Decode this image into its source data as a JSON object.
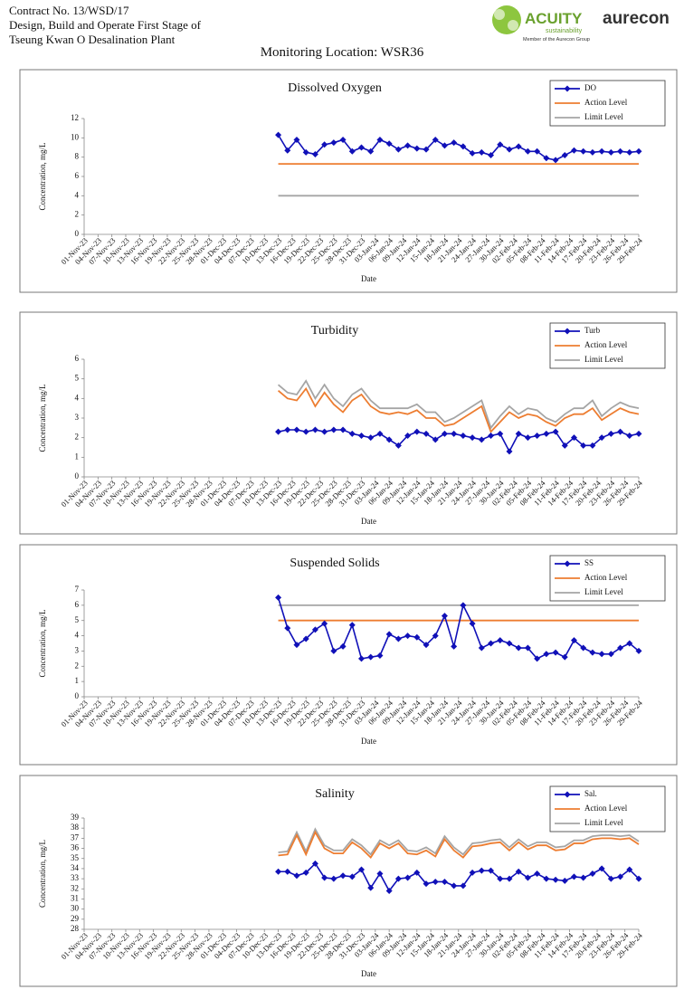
{
  "header": {
    "contract": "Contract No. 13/WSD/17",
    "line2": "Design, Build and Operate First Stage of",
    "line3": "Tseung Kwan O Desalination Plant",
    "logo_acuity": "ACUITY",
    "logo_sub": "sustainability",
    "logo_member": "Member of the Aurecon Group",
    "logo_aurecon": "aurecon"
  },
  "page_title": "Monitoring Location: WSR36",
  "chart_data": [
    {
      "type": "line",
      "title": "Dissolved Oxygen",
      "y_label": "Concentration, mg/L",
      "x_label": "Date",
      "legend": "upper right",
      "ylim": [
        0,
        12
      ],
      "yticks": [
        0,
        2,
        4,
        6,
        8,
        10,
        12
      ],
      "xlim": [
        "01-Nov-23",
        "29-Feb-24"
      ],
      "xticks": [
        "01-Nov-23",
        "04-Nov-23",
        "07-Nov-23",
        "10-Nov-23",
        "13-Nov-23",
        "16-Nov-23",
        "19-Nov-23",
        "22-Nov-23",
        "25-Nov-23",
        "28-Nov-23",
        "01-Dec-23",
        "04-Dec-23",
        "07-Dec-23",
        "10-Dec-23",
        "13-Dec-23",
        "16-Dec-23",
        "19-Dec-23",
        "22-Dec-23",
        "25-Dec-23",
        "28-Dec-23",
        "31-Dec-23",
        "03-Jan-24",
        "06-Jan-24",
        "09-Jan-24",
        "12-Jan-24",
        "15-Jan-24",
        "18-Jan-24",
        "21-Jan-24",
        "24-Jan-24",
        "27-Jan-24",
        "30-Jan-24",
        "02-Feb-24",
        "05-Feb-24",
        "08-Feb-24",
        "11-Feb-24",
        "14-Feb-24",
        "17-Feb-24",
        "20-Feb-24",
        "23-Feb-24",
        "26-Feb-24",
        "29-Feb-24"
      ],
      "x": [
        "13-Dec-23",
        "15-Dec-23",
        "17-Dec-23",
        "19-Dec-23",
        "21-Dec-23",
        "23-Dec-23",
        "25-Dec-23",
        "27-Dec-23",
        "29-Dec-23",
        "31-Dec-23",
        "02-Jan-24",
        "04-Jan-24",
        "06-Jan-24",
        "08-Jan-24",
        "10-Jan-24",
        "12-Jan-24",
        "14-Jan-24",
        "16-Jan-24",
        "18-Jan-24",
        "20-Jan-24",
        "22-Jan-24",
        "24-Jan-24",
        "26-Jan-24",
        "28-Jan-24",
        "30-Jan-24",
        "01-Feb-24",
        "03-Feb-24",
        "05-Feb-24",
        "07-Feb-24",
        "09-Feb-24",
        "11-Feb-24",
        "13-Feb-24",
        "15-Feb-24",
        "17-Feb-24",
        "19-Feb-24",
        "21-Feb-24",
        "23-Feb-24",
        "25-Feb-24",
        "27-Feb-24",
        "29-Feb-24"
      ],
      "series": [
        {
          "name": "DO",
          "color": "#1010b8",
          "marker": "diamond",
          "values": [
            10.3,
            8.7,
            9.8,
            8.5,
            8.3,
            9.3,
            9.5,
            9.8,
            8.6,
            9.0,
            8.6,
            9.8,
            9.4,
            8.8,
            9.2,
            8.9,
            8.8,
            9.8,
            9.2,
            9.5,
            9.1,
            8.4,
            8.5,
            8.2,
            9.3,
            8.8,
            9.1,
            8.6,
            8.6,
            7.9,
            7.7,
            8.2,
            8.7,
            8.6,
            8.5,
            8.6,
            8.5,
            8.6,
            8.5,
            8.6
          ]
        },
        {
          "name": "Action Level",
          "color": "#ed7d31",
          "values": [
            7.3,
            7.3,
            7.3,
            7.3,
            7.3,
            7.3,
            7.3,
            7.3,
            7.3,
            7.3,
            7.3,
            7.3,
            7.3,
            7.3,
            7.3,
            7.3,
            7.3,
            7.3,
            7.3,
            7.3,
            7.3,
            7.3,
            7.3,
            7.3,
            7.3,
            7.3,
            7.3,
            7.3,
            7.3,
            7.3,
            7.3,
            7.3,
            7.3,
            7.3,
            7.3,
            7.3,
            7.3,
            7.3,
            7.3,
            7.3
          ]
        },
        {
          "name": "Limit Level",
          "color": "#a5a5a5",
          "values": [
            4,
            4,
            4,
            4,
            4,
            4,
            4,
            4,
            4,
            4,
            4,
            4,
            4,
            4,
            4,
            4,
            4,
            4,
            4,
            4,
            4,
            4,
            4,
            4,
            4,
            4,
            4,
            4,
            4,
            4,
            4,
            4,
            4,
            4,
            4,
            4,
            4,
            4,
            4,
            4
          ]
        }
      ]
    },
    {
      "type": "line",
      "title": "Turbidity",
      "y_label": "Concentration, mg/L",
      "x_label": "Date",
      "legend": "upper right",
      "ylim": [
        0,
        6
      ],
      "yticks": [
        0,
        1,
        2,
        3,
        4,
        5,
        6
      ],
      "xlim": [
        "01-Nov-23",
        "29-Feb-24"
      ],
      "xticks": [
        "01-Nov-23",
        "04-Nov-23",
        "07-Nov-23",
        "10-Nov-23",
        "13-Nov-23",
        "16-Nov-23",
        "19-Nov-23",
        "22-Nov-23",
        "25-Nov-23",
        "28-Nov-23",
        "01-Dec-23",
        "04-Dec-23",
        "07-Dec-23",
        "10-Dec-23",
        "13-Dec-23",
        "16-Dec-23",
        "19-Dec-23",
        "22-Dec-23",
        "25-Dec-23",
        "28-Dec-23",
        "31-Dec-23",
        "03-Jan-24",
        "06-Jan-24",
        "09-Jan-24",
        "12-Jan-24",
        "15-Jan-24",
        "18-Jan-24",
        "21-Jan-24",
        "24-Jan-24",
        "27-Jan-24",
        "30-Jan-24",
        "02-Feb-24",
        "05-Feb-24",
        "08-Feb-24",
        "11-Feb-24",
        "14-Feb-24",
        "17-Feb-24",
        "20-Feb-24",
        "23-Feb-24",
        "26-Feb-24",
        "29-Feb-24"
      ],
      "x": [
        "13-Dec-23",
        "15-Dec-23",
        "17-Dec-23",
        "19-Dec-23",
        "21-Dec-23",
        "23-Dec-23",
        "25-Dec-23",
        "27-Dec-23",
        "29-Dec-23",
        "31-Dec-23",
        "02-Jan-24",
        "04-Jan-24",
        "06-Jan-24",
        "08-Jan-24",
        "10-Jan-24",
        "12-Jan-24",
        "14-Jan-24",
        "16-Jan-24",
        "18-Jan-24",
        "20-Jan-24",
        "22-Jan-24",
        "24-Jan-24",
        "26-Jan-24",
        "28-Jan-24",
        "30-Jan-24",
        "01-Feb-24",
        "03-Feb-24",
        "05-Feb-24",
        "07-Feb-24",
        "09-Feb-24",
        "11-Feb-24",
        "13-Feb-24",
        "15-Feb-24",
        "17-Feb-24",
        "19-Feb-24",
        "21-Feb-24",
        "23-Feb-24",
        "25-Feb-24",
        "27-Feb-24",
        "29-Feb-24"
      ],
      "series": [
        {
          "name": "Turb",
          "color": "#1010b8",
          "marker": "diamond",
          "values": [
            2.3,
            2.4,
            2.4,
            2.3,
            2.4,
            2.3,
            2.4,
            2.4,
            2.2,
            2.1,
            2.0,
            2.2,
            1.9,
            1.6,
            2.1,
            2.3,
            2.2,
            1.9,
            2.2,
            2.2,
            2.1,
            2.0,
            1.9,
            2.1,
            2.2,
            1.3,
            2.2,
            2.0,
            2.1,
            2.2,
            2.3,
            1.6,
            2.0,
            1.6,
            1.6,
            2.0,
            2.2,
            2.3,
            2.1,
            2.2
          ]
        },
        {
          "name": "Action Level",
          "color": "#ed7d31",
          "values": [
            4.4,
            4.0,
            3.9,
            4.5,
            3.6,
            4.3,
            3.7,
            3.3,
            3.9,
            4.2,
            3.6,
            3.3,
            3.2,
            3.3,
            3.2,
            3.4,
            3.0,
            3.0,
            2.6,
            2.7,
            3.0,
            3.3,
            3.6,
            2.3,
            2.8,
            3.3,
            3.0,
            3.2,
            3.1,
            2.8,
            2.6,
            3.0,
            3.2,
            3.2,
            3.5,
            2.9,
            3.2,
            3.5,
            3.3,
            3.2
          ]
        },
        {
          "name": "Limit Level",
          "color": "#a5a5a5",
          "values": [
            4.7,
            4.3,
            4.2,
            4.9,
            4.0,
            4.7,
            4.0,
            3.6,
            4.2,
            4.5,
            3.9,
            3.5,
            3.5,
            3.5,
            3.5,
            3.7,
            3.3,
            3.3,
            2.8,
            3.0,
            3.3,
            3.6,
            3.9,
            2.5,
            3.1,
            3.6,
            3.2,
            3.5,
            3.4,
            3.0,
            2.8,
            3.2,
            3.5,
            3.5,
            3.9,
            3.1,
            3.5,
            3.8,
            3.6,
            3.5
          ]
        }
      ]
    },
    {
      "type": "line",
      "title": "Suspended Solids",
      "y_label": "Concentration, mg/L",
      "x_label": "Date",
      "legend": "upper right",
      "ylim": [
        0,
        7
      ],
      "yticks": [
        0,
        1,
        2,
        3,
        4,
        5,
        6,
        7
      ],
      "xlim": [
        "01-Nov-23",
        "29-Feb-24"
      ],
      "xticks": [
        "01-Nov-23",
        "04-Nov-23",
        "07-Nov-23",
        "10-Nov-23",
        "13-Nov-23",
        "16-Nov-23",
        "19-Nov-23",
        "22-Nov-23",
        "25-Nov-23",
        "28-Nov-23",
        "01-Dec-23",
        "04-Dec-23",
        "07-Dec-23",
        "10-Dec-23",
        "13-Dec-23",
        "16-Dec-23",
        "19-Dec-23",
        "22-Dec-23",
        "25-Dec-23",
        "28-Dec-23",
        "31-Dec-23",
        "03-Jan-24",
        "06-Jan-24",
        "09-Jan-24",
        "12-Jan-24",
        "15-Jan-24",
        "18-Jan-24",
        "21-Jan-24",
        "24-Jan-24",
        "27-Jan-24",
        "30-Jan-24",
        "02-Feb-24",
        "05-Feb-24",
        "08-Feb-24",
        "11-Feb-24",
        "14-Feb-24",
        "17-Feb-24",
        "20-Feb-24",
        "23-Feb-24",
        "26-Feb-24",
        "29-Feb-24"
      ],
      "x": [
        "13-Dec-23",
        "15-Dec-23",
        "17-Dec-23",
        "19-Dec-23",
        "21-Dec-23",
        "23-Dec-23",
        "25-Dec-23",
        "27-Dec-23",
        "29-Dec-23",
        "31-Dec-23",
        "02-Jan-24",
        "04-Jan-24",
        "06-Jan-24",
        "08-Jan-24",
        "10-Jan-24",
        "12-Jan-24",
        "14-Jan-24",
        "16-Jan-24",
        "18-Jan-24",
        "20-Jan-24",
        "22-Jan-24",
        "24-Jan-24",
        "26-Jan-24",
        "28-Jan-24",
        "30-Jan-24",
        "01-Feb-24",
        "03-Feb-24",
        "05-Feb-24",
        "07-Feb-24",
        "09-Feb-24",
        "11-Feb-24",
        "13-Feb-24",
        "15-Feb-24",
        "17-Feb-24",
        "19-Feb-24",
        "21-Feb-24",
        "23-Feb-24",
        "25-Feb-24",
        "27-Feb-24",
        "29-Feb-24"
      ],
      "series": [
        {
          "name": "SS",
          "color": "#1010b8",
          "marker": "diamond",
          "values": [
            6.5,
            4.5,
            3.4,
            3.8,
            4.4,
            4.8,
            3.0,
            3.3,
            4.7,
            2.5,
            2.6,
            2.7,
            4.1,
            3.8,
            4.0,
            3.9,
            3.4,
            4.0,
            5.3,
            3.3,
            6.0,
            4.8,
            3.2,
            3.5,
            3.7,
            3.5,
            3.2,
            3.2,
            2.5,
            2.8,
            2.9,
            2.6,
            3.7,
            3.2,
            2.9,
            2.8,
            2.8,
            3.2,
            3.5,
            3.0
          ]
        },
        {
          "name": "Action Level",
          "color": "#ed7d31",
          "values": [
            5,
            5,
            5,
            5,
            5,
            5,
            5,
            5,
            5,
            5,
            5,
            5,
            5,
            5,
            5,
            5,
            5,
            5,
            5,
            5,
            5,
            5,
            5,
            5,
            5,
            5,
            5,
            5,
            5,
            5,
            5,
            5,
            5,
            5,
            5,
            5,
            5,
            5,
            5,
            5
          ]
        },
        {
          "name": "Limit Level",
          "color": "#a5a5a5",
          "values": [
            6,
            6,
            6,
            6,
            6,
            6,
            6,
            6,
            6,
            6,
            6,
            6,
            6,
            6,
            6,
            6,
            6,
            6,
            6,
            6,
            6,
            6,
            6,
            6,
            6,
            6,
            6,
            6,
            6,
            6,
            6,
            6,
            6,
            6,
            6,
            6,
            6,
            6,
            6,
            6
          ]
        }
      ]
    },
    {
      "type": "line",
      "title": "Salinity",
      "y_label": "Concentration, mg/L",
      "x_label": "Date",
      "legend": "upper right",
      "ylim": [
        28,
        39
      ],
      "yticks": [
        28,
        29,
        30,
        31,
        32,
        33,
        34,
        35,
        36,
        37,
        38,
        39
      ],
      "xlim": [
        "01-Nov-23",
        "29-Feb-24"
      ],
      "xticks": [
        "01-Nov-23",
        "04-Nov-23",
        "07-Nov-23",
        "10-Nov-23",
        "13-Nov-23",
        "16-Nov-23",
        "19-Nov-23",
        "22-Nov-23",
        "25-Nov-23",
        "28-Nov-23",
        "01-Dec-23",
        "04-Dec-23",
        "07-Dec-23",
        "10-Dec-23",
        "13-Dec-23",
        "16-Dec-23",
        "19-Dec-23",
        "22-Dec-23",
        "25-Dec-23",
        "28-Dec-23",
        "31-Dec-23",
        "03-Jan-24",
        "06-Jan-24",
        "09-Jan-24",
        "12-Jan-24",
        "15-Jan-24",
        "18-Jan-24",
        "21-Jan-24",
        "24-Jan-24",
        "27-Jan-24",
        "30-Jan-24",
        "02-Feb-24",
        "05-Feb-24",
        "08-Feb-24",
        "11-Feb-24",
        "14-Feb-24",
        "17-Feb-24",
        "20-Feb-24",
        "23-Feb-24",
        "26-Feb-24",
        "29-Feb-24"
      ],
      "x": [
        "13-Dec-23",
        "15-Dec-23",
        "17-Dec-23",
        "19-Dec-23",
        "21-Dec-23",
        "23-Dec-23",
        "25-Dec-23",
        "27-Dec-23",
        "29-Dec-23",
        "31-Dec-23",
        "02-Jan-24",
        "04-Jan-24",
        "06-Jan-24",
        "08-Jan-24",
        "10-Jan-24",
        "12-Jan-24",
        "14-Jan-24",
        "16-Jan-24",
        "18-Jan-24",
        "20-Jan-24",
        "22-Jan-24",
        "24-Jan-24",
        "26-Jan-24",
        "28-Jan-24",
        "30-Jan-24",
        "01-Feb-24",
        "03-Feb-24",
        "05-Feb-24",
        "07-Feb-24",
        "09-Feb-24",
        "11-Feb-24",
        "13-Feb-24",
        "15-Feb-24",
        "17-Feb-24",
        "19-Feb-24",
        "21-Feb-24",
        "23-Feb-24",
        "25-Feb-24",
        "27-Feb-24",
        "29-Feb-24"
      ],
      "series": [
        {
          "name": "Sal.",
          "color": "#1010b8",
          "marker": "diamond",
          "values": [
            33.7,
            33.7,
            33.3,
            33.6,
            34.5,
            33.1,
            33.0,
            33.3,
            33.2,
            33.9,
            32.1,
            33.5,
            31.8,
            33.0,
            33.1,
            33.6,
            32.5,
            32.7,
            32.7,
            32.3,
            32.3,
            33.6,
            33.8,
            33.8,
            33.0,
            33.0,
            33.7,
            33.1,
            33.5,
            33.0,
            32.9,
            32.8,
            33.2,
            33.1,
            33.5,
            34.0,
            33.0,
            33.2,
            33.9,
            33.0
          ]
        },
        {
          "name": "Action Level",
          "color": "#ed7d31",
          "values": [
            35.3,
            35.4,
            37.3,
            35.4,
            37.6,
            36.0,
            35.5,
            35.5,
            36.6,
            36.0,
            35.1,
            36.5,
            36.0,
            36.5,
            35.5,
            35.4,
            35.8,
            35.2,
            36.9,
            35.8,
            35.1,
            36.2,
            36.3,
            36.5,
            36.6,
            35.8,
            36.6,
            35.9,
            36.3,
            36.3,
            35.8,
            35.9,
            36.5,
            36.5,
            36.9,
            37.0,
            37.0,
            36.9,
            37.0,
            36.4
          ]
        },
        {
          "name": "Limit Level",
          "color": "#a5a5a5",
          "values": [
            35.6,
            35.7,
            37.6,
            35.7,
            37.9,
            36.3,
            35.8,
            35.8,
            36.9,
            36.3,
            35.4,
            36.8,
            36.3,
            36.8,
            35.8,
            35.7,
            36.1,
            35.5,
            37.2,
            36.1,
            35.4,
            36.5,
            36.6,
            36.8,
            36.9,
            36.1,
            36.9,
            36.2,
            36.6,
            36.6,
            36.1,
            36.2,
            36.8,
            36.8,
            37.2,
            37.3,
            37.3,
            37.2,
            37.3,
            36.7
          ]
        }
      ]
    }
  ]
}
